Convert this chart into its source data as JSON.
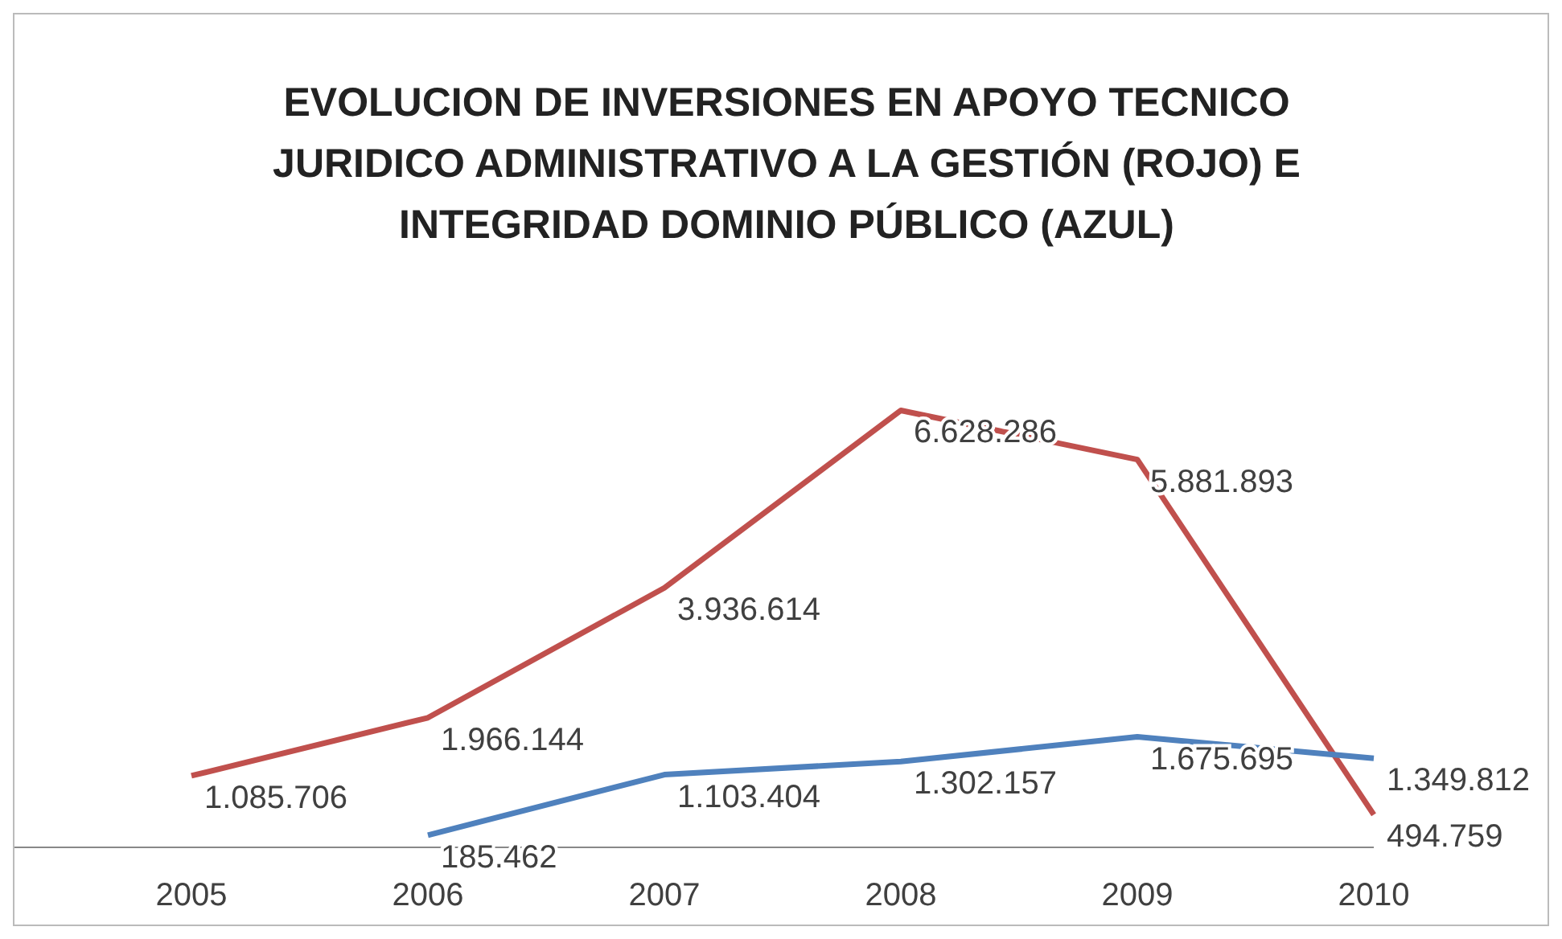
{
  "chart_data": {
    "type": "line",
    "title": "EVOLUCION DE INVERSIONES EN APOYO TECNICO JURIDICO ADMINISTRATIVO A LA GESTIÓN (ROJO) E INTEGRIDAD DOMINIO PÚBLICO (AZUL)",
    "categories": [
      "2005",
      "2006",
      "2007",
      "2008",
      "2009",
      "2010"
    ],
    "series": [
      {
        "color": "#c0504d",
        "values": [
          1085706,
          1966144,
          3936614,
          6628286,
          5881893,
          494759
        ],
        "value_labels": [
          "1.085.706",
          "1.966.144",
          "3.936.614",
          "6.628.286",
          "5.881.893",
          "494.759"
        ]
      },
      {
        "color": "#4f81bd",
        "values": [
          null,
          185462,
          1103404,
          1302157,
          1675695,
          1349812
        ],
        "value_labels": [
          null,
          "185.462",
          "1.103.404",
          "1.302.157",
          "1.675.695",
          "1.349.812"
        ]
      }
    ]
  }
}
